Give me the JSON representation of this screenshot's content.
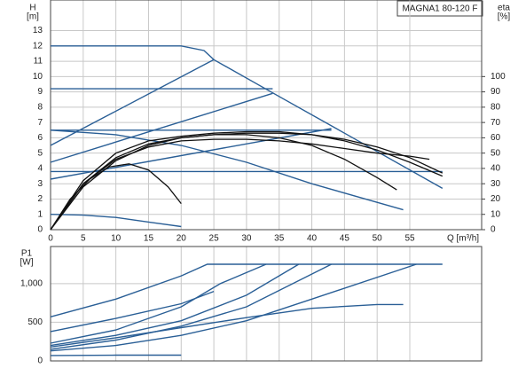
{
  "chart_data": [
    {
      "type": "line",
      "annotation": "MAGNA1 80-120 F",
      "ylabel": [
        "H",
        "[m]"
      ],
      "y2label": [
        "eta",
        "[%]"
      ],
      "xlabel": "Q [m³/h]",
      "xlim": [
        0,
        66
      ],
      "xticks": [
        0,
        5,
        10,
        15,
        20,
        25,
        30,
        35,
        40,
        45,
        50,
        55
      ],
      "ylim": [
        0,
        15
      ],
      "yticks": [
        0,
        1,
        2,
        3,
        4,
        5,
        6,
        7,
        8,
        9,
        10,
        11,
        12,
        13
      ],
      "y2lim": [
        0,
        150
      ],
      "y2ticks": [
        0,
        10,
        20,
        30,
        40,
        50,
        60,
        70,
        80,
        90,
        100
      ],
      "grid": true,
      "show_xtick_labels": true,
      "series": [
        {
          "color": "#2a5f96",
          "x": [
            0,
            10,
            20,
            23.5,
            25,
            35,
            45,
            60
          ],
          "values": [
            12,
            12,
            12,
            11.7,
            11.1,
            8.7,
            6.3,
            2.7
          ]
        },
        {
          "color": "#2a5f96",
          "x": [
            0,
            34
          ],
          "values": [
            9.2,
            9.2
          ]
        },
        {
          "color": "#2a5f96",
          "x": [
            0,
            43
          ],
          "values": [
            6.5,
            6.5
          ]
        },
        {
          "color": "#2a5f96",
          "x": [
            0,
            60
          ],
          "values": [
            3.8,
            3.8
          ]
        },
        {
          "color": "#2a5f96",
          "x": [
            0,
            25
          ],
          "values": [
            5.5,
            11.1
          ]
        },
        {
          "color": "#2a5f96",
          "x": [
            0,
            34
          ],
          "values": [
            4.4,
            8.9
          ]
        },
        {
          "color": "#2a5f96",
          "x": [
            0,
            43
          ],
          "values": [
            3.3,
            6.6
          ]
        },
        {
          "color": "#2a5f96",
          "x": [
            0,
            5,
            10,
            15,
            20
          ],
          "values": [
            1,
            0.95,
            0.8,
            0.5,
            0.2
          ]
        },
        {
          "color": "#2a5f96",
          "x": [
            0,
            10,
            20,
            30,
            40,
            54
          ],
          "values": [
            6.5,
            6.2,
            5.5,
            4.4,
            3,
            1.3
          ]
        },
        {
          "color": "#111111",
          "axis": "y2",
          "x": [
            0,
            3,
            6,
            9,
            12,
            15,
            18,
            20
          ],
          "values": [
            0,
            20,
            33,
            41,
            43,
            39,
            28,
            17
          ]
        },
        {
          "color": "#111111",
          "axis": "y2",
          "x": [
            0,
            5,
            10,
            15,
            20,
            25,
            30,
            35,
            40,
            45,
            50,
            53
          ],
          "values": [
            0,
            30,
            47,
            56,
            60,
            62,
            62,
            60,
            55,
            46,
            34,
            26
          ]
        },
        {
          "color": "#111111",
          "axis": "y2",
          "x": [
            0,
            5,
            10,
            15,
            20,
            25,
            30,
            35,
            40,
            45,
            50,
            55,
            60
          ],
          "values": [
            0,
            32,
            50,
            58,
            61,
            63,
            64,
            64,
            62,
            58,
            52,
            44,
            35
          ]
        },
        {
          "color": "#111111",
          "axis": "y2",
          "x": [
            0,
            5,
            10,
            15,
            20,
            25,
            30,
            35,
            40,
            45,
            50,
            55,
            60
          ],
          "values": [
            0,
            28,
            45,
            55,
            60,
            62,
            63,
            63,
            62,
            59,
            54,
            47,
            37
          ]
        },
        {
          "color": "#111111",
          "axis": "y2",
          "x": [
            0,
            5,
            10,
            15,
            20,
            25,
            30,
            35,
            40,
            45,
            50,
            55,
            58
          ],
          "values": [
            0,
            30,
            46,
            54,
            58,
            59,
            59,
            58,
            56,
            53,
            50,
            48,
            46
          ]
        }
      ]
    },
    {
      "type": "line",
      "ylabel": [
        "P1",
        "[W]"
      ],
      "xlim": [
        0,
        66
      ],
      "xticks": [
        0,
        5,
        10,
        15,
        20,
        25,
        30,
        35,
        40,
        45,
        50,
        55
      ],
      "ylim": [
        0,
        1480
      ],
      "yticks": [
        0,
        500,
        {
          "value": 1000,
          "label": "1,000"
        }
      ],
      "grid": true,
      "show_xtick_labels": false,
      "series": [
        {
          "color": "#2a5f96",
          "x": [
            0,
            10,
            20,
            24,
            60
          ],
          "values": [
            570,
            800,
            1100,
            1250,
            1250
          ]
        },
        {
          "color": "#2a5f96",
          "x": [
            0,
            10,
            20,
            26,
            33
          ],
          "values": [
            230,
            400,
            700,
            1000,
            1250
          ]
        },
        {
          "color": "#2a5f96",
          "x": [
            0,
            10,
            20,
            30,
            38
          ],
          "values": [
            200,
            330,
            520,
            850,
            1250
          ]
        },
        {
          "color": "#2a5f96",
          "x": [
            0,
            10,
            20,
            30,
            43
          ],
          "values": [
            150,
            270,
            450,
            700,
            1250
          ]
        },
        {
          "color": "#2a5f96",
          "x": [
            0,
            10,
            20,
            30,
            40,
            56
          ],
          "values": [
            130,
            200,
            330,
            520,
            800,
            1250
          ]
        },
        {
          "color": "#2a5f96",
          "x": [
            0,
            10,
            20,
            30,
            40,
            50,
            54
          ],
          "values": [
            180,
            300,
            430,
            560,
            680,
            730,
            730
          ]
        },
        {
          "color": "#2a5f96",
          "x": [
            0,
            10,
            20,
            25
          ],
          "values": [
            380,
            550,
            740,
            900
          ]
        },
        {
          "color": "#2a5f96",
          "x": [
            0,
            10,
            20
          ],
          "values": [
            70,
            75,
            75
          ]
        }
      ]
    }
  ]
}
